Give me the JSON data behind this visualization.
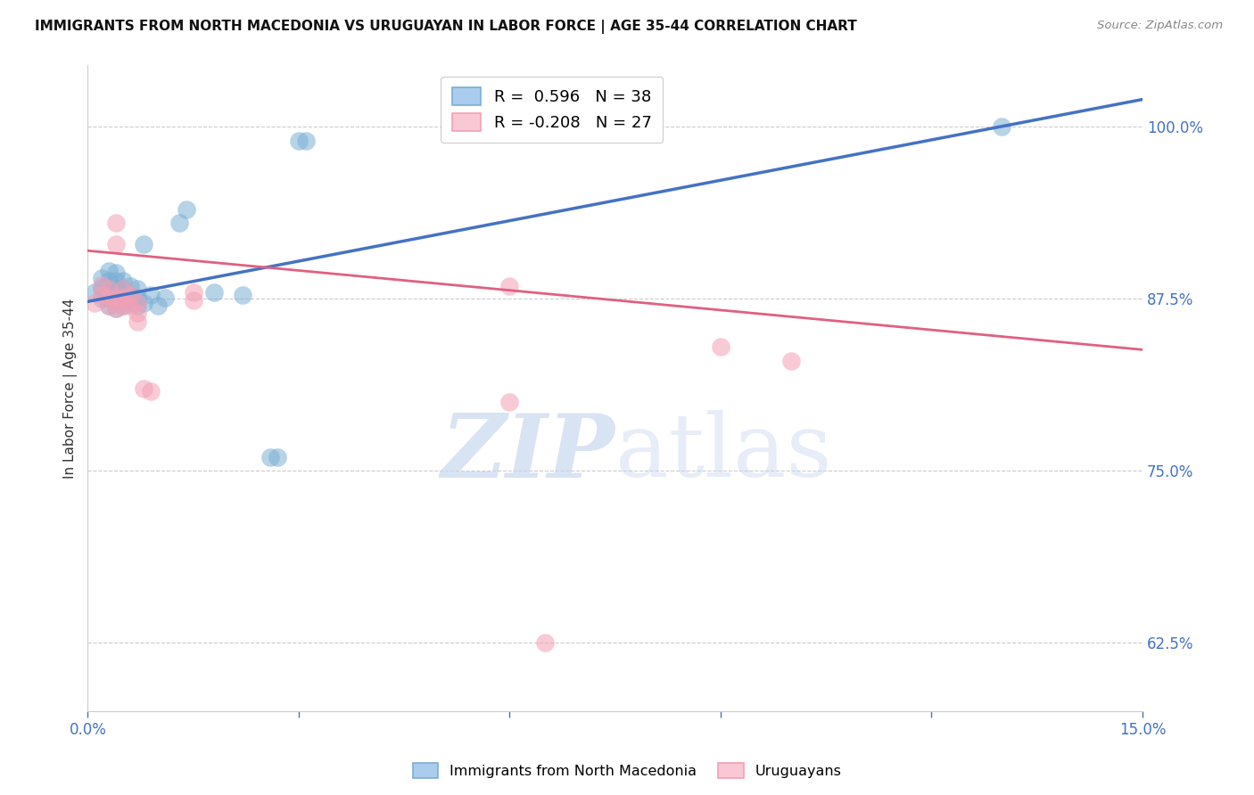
{
  "title": "IMMIGRANTS FROM NORTH MACEDONIA VS URUGUAYAN IN LABOR FORCE | AGE 35-44 CORRELATION CHART",
  "source": "Source: ZipAtlas.com",
  "ylabel": "In Labor Force | Age 35-44",
  "xlim": [
    0.0,
    0.15
  ],
  "ylim": [
    0.575,
    1.045
  ],
  "xticks": [
    0.0,
    0.03,
    0.06,
    0.09,
    0.12,
    0.15
  ],
  "xtick_labels": [
    "0.0%",
    "",
    "",
    "",
    "",
    "15.0%"
  ],
  "yticks": [
    0.625,
    0.75,
    0.875,
    1.0
  ],
  "ytick_labels": [
    "62.5%",
    "75.0%",
    "87.5%",
    "100.0%"
  ],
  "legend_r1": "R =  0.596   N = 38",
  "legend_r2": "R = -0.208   N = 27",
  "legend_label1": "Immigrants from North Macedonia",
  "legend_label2": "Uruguayans",
  "blue_color": "#7BAFD4",
  "pink_color": "#F4A0B5",
  "blue_line_color": "#4472C4",
  "pink_line_color": "#E06080",
  "blue_scatter": [
    [
      0.001,
      0.88
    ],
    [
      0.002,
      0.875
    ],
    [
      0.002,
      0.883
    ],
    [
      0.002,
      0.89
    ],
    [
      0.003,
      0.87
    ],
    [
      0.003,
      0.876
    ],
    [
      0.003,
      0.882
    ],
    [
      0.003,
      0.888
    ],
    [
      0.003,
      0.895
    ],
    [
      0.004,
      0.868
    ],
    [
      0.004,
      0.875
    ],
    [
      0.004,
      0.882
    ],
    [
      0.004,
      0.888
    ],
    [
      0.004,
      0.894
    ],
    [
      0.005,
      0.87
    ],
    [
      0.005,
      0.876
    ],
    [
      0.005,
      0.882
    ],
    [
      0.005,
      0.888
    ],
    [
      0.006,
      0.872
    ],
    [
      0.006,
      0.878
    ],
    [
      0.006,
      0.884
    ],
    [
      0.007,
      0.87
    ],
    [
      0.007,
      0.876
    ],
    [
      0.007,
      0.882
    ],
    [
      0.008,
      0.872
    ],
    [
      0.008,
      0.915
    ],
    [
      0.009,
      0.878
    ],
    [
      0.01,
      0.87
    ],
    [
      0.011,
      0.876
    ],
    [
      0.013,
      0.93
    ],
    [
      0.014,
      0.94
    ],
    [
      0.018,
      0.88
    ],
    [
      0.022,
      0.878
    ],
    [
      0.026,
      0.76
    ],
    [
      0.027,
      0.76
    ],
    [
      0.03,
      0.99
    ],
    [
      0.031,
      0.99
    ],
    [
      0.13,
      1.0
    ]
  ],
  "pink_scatter": [
    [
      0.001,
      0.872
    ],
    [
      0.002,
      0.878
    ],
    [
      0.002,
      0.885
    ],
    [
      0.003,
      0.87
    ],
    [
      0.003,
      0.876
    ],
    [
      0.003,
      0.882
    ],
    [
      0.004,
      0.868
    ],
    [
      0.004,
      0.875
    ],
    [
      0.004,
      0.915
    ],
    [
      0.004,
      0.93
    ],
    [
      0.005,
      0.87
    ],
    [
      0.005,
      0.876
    ],
    [
      0.005,
      0.882
    ],
    [
      0.006,
      0.878
    ],
    [
      0.006,
      0.87
    ],
    [
      0.007,
      0.872
    ],
    [
      0.007,
      0.865
    ],
    [
      0.007,
      0.858
    ],
    [
      0.008,
      0.81
    ],
    [
      0.009,
      0.808
    ],
    [
      0.015,
      0.88
    ],
    [
      0.015,
      0.874
    ],
    [
      0.06,
      0.884
    ],
    [
      0.09,
      0.84
    ],
    [
      0.1,
      0.83
    ],
    [
      0.06,
      0.8
    ],
    [
      0.065,
      0.625
    ]
  ],
  "blue_line_x": [
    0.0,
    0.15
  ],
  "blue_line_y": [
    0.873,
    1.02
  ],
  "pink_line_x": [
    0.0,
    0.15
  ],
  "pink_line_y": [
    0.91,
    0.838
  ],
  "watermark_zip": "ZIP",
  "watermark_atlas": "atlas",
  "background_color": "#FFFFFF",
  "grid_color": "#CCCCCC"
}
